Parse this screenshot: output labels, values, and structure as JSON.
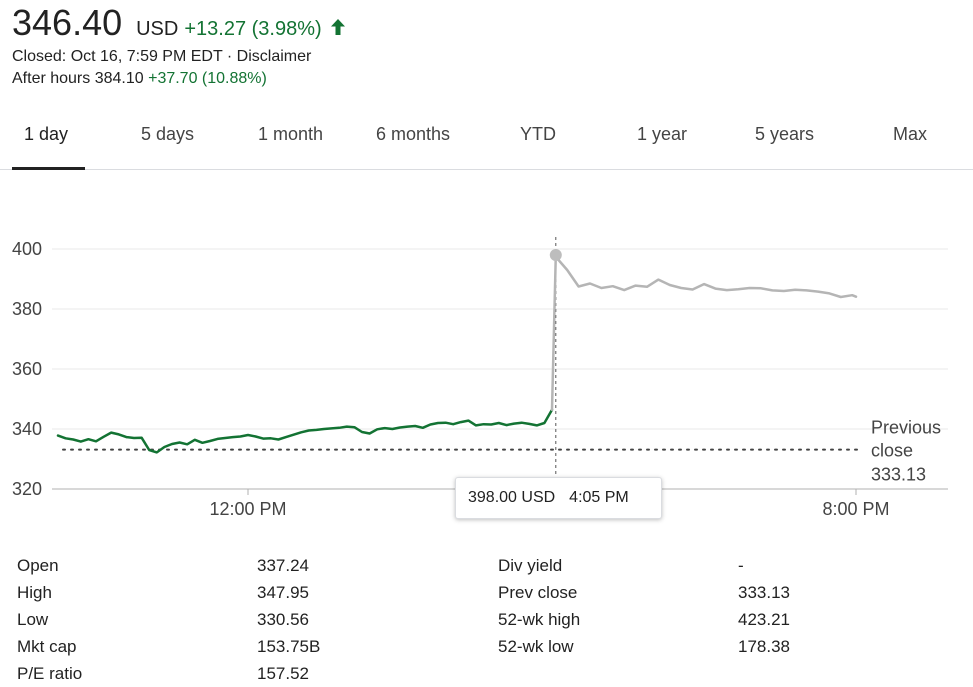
{
  "quote": {
    "price": "346.40",
    "currency": "USD",
    "change": "+13.27 (3.98%)",
    "closed_text": "Closed: Oct 16, 7:59 PM EDT · Disclaimer",
    "after_hours_label": "After hours 384.10",
    "after_hours_change": "+37.70 (10.88%)",
    "up_color": "#137333",
    "arrow_icon": "arrow-up-icon"
  },
  "tabs": [
    {
      "label": "1 day",
      "active": true
    },
    {
      "label": "5 days"
    },
    {
      "label": "1 month"
    },
    {
      "label": "6 months"
    },
    {
      "label": "YTD"
    },
    {
      "label": "1 year"
    },
    {
      "label": "5 years"
    },
    {
      "label": "Max"
    }
  ],
  "chart_data": {
    "type": "line",
    "y_ticks": [
      "400",
      "380",
      "360",
      "340",
      "320"
    ],
    "x_ticks": [
      "12:00 PM",
      "8:00 PM"
    ],
    "ylim": [
      320,
      404
    ],
    "grid": true,
    "series": [
      {
        "session": "regular",
        "color": "#137333",
        "x": [
          9.5,
          9.6,
          9.7,
          9.8,
          9.9,
          10.0,
          10.1,
          10.2,
          10.3,
          10.4,
          10.5,
          10.6,
          10.7,
          10.8,
          10.9,
          11.0,
          11.1,
          11.2,
          11.3,
          11.4,
          11.5,
          11.6,
          11.7,
          11.8,
          11.9,
          12.0,
          12.1,
          12.2,
          12.3,
          12.4,
          12.5,
          12.6,
          12.7,
          12.8,
          12.9,
          13.0,
          13.1,
          13.2,
          13.3,
          13.4,
          13.5,
          13.6,
          13.7,
          13.8,
          13.9,
          14.0,
          14.1,
          14.2,
          14.3,
          14.4,
          14.5,
          14.6,
          14.7,
          14.8,
          14.9,
          15.0,
          15.1,
          15.2,
          15.3,
          15.4,
          15.5,
          15.6,
          15.7,
          15.8,
          15.9,
          16.0
        ],
        "y": [
          337.8,
          336.9,
          336.5,
          335.8,
          336.6,
          335.9,
          337.4,
          338.8,
          338.2,
          337.3,
          337.0,
          337.1,
          333.0,
          332.2,
          334.0,
          335.0,
          335.5,
          334.9,
          336.4,
          335.4,
          336.0,
          336.7,
          337.0,
          337.3,
          337.5,
          338.0,
          337.5,
          336.8,
          336.9,
          336.5,
          337.3,
          338.1,
          338.9,
          339.5,
          339.7,
          340.0,
          340.2,
          340.4,
          340.8,
          340.6,
          339.0,
          338.5,
          339.9,
          340.3,
          340.0,
          340.5,
          340.8,
          341.0,
          340.4,
          341.5,
          342.0,
          342.1,
          341.6,
          342.3,
          342.8,
          341.2,
          341.6,
          341.5,
          342.0,
          341.3,
          341.8,
          342.1,
          341.7,
          341.2,
          342.0,
          346.4
        ]
      },
      {
        "session": "after-hours",
        "color": "#b5b5b5",
        "x": [
          16.0,
          16.05,
          16.08,
          16.2,
          16.35,
          16.5,
          16.65,
          16.8,
          16.95,
          17.1,
          17.25,
          17.4,
          17.55,
          17.7,
          17.85,
          18.0,
          18.15,
          18.3,
          18.45,
          18.6,
          18.75,
          18.9,
          19.05,
          19.2,
          19.35,
          19.5,
          19.65,
          19.8,
          19.95,
          20.0
        ],
        "y": [
          346.4,
          398.0,
          396.5,
          393.0,
          387.5,
          388.5,
          387.0,
          387.6,
          386.3,
          387.8,
          387.4,
          389.8,
          388.0,
          387.0,
          386.5,
          388.3,
          386.8,
          386.3,
          386.6,
          387.0,
          386.9,
          386.2,
          386.0,
          386.4,
          386.2,
          385.8,
          385.2,
          384.0,
          384.6,
          384.1
        ]
      }
    ],
    "previous_close": {
      "label_line1": "Previous",
      "label_line2": "close",
      "value": "333.13",
      "y": 333.13
    },
    "hover": {
      "x": 16.05,
      "y": 398.0,
      "price_text": "398.00 USD",
      "time_text": "4:05 PM"
    }
  },
  "stats": {
    "left": [
      {
        "label": "Open",
        "value": "337.24"
      },
      {
        "label": "High",
        "value": "347.95"
      },
      {
        "label": "Low",
        "value": "330.56"
      },
      {
        "label": "Mkt cap",
        "value": "153.75B"
      },
      {
        "label": "P/E ratio",
        "value": "157.52"
      }
    ],
    "right": [
      {
        "label": "Div yield",
        "value": "-"
      },
      {
        "label": "Prev close",
        "value": "333.13"
      },
      {
        "label": "52-wk high",
        "value": "423.21"
      },
      {
        "label": "52-wk low",
        "value": "178.38"
      }
    ]
  }
}
